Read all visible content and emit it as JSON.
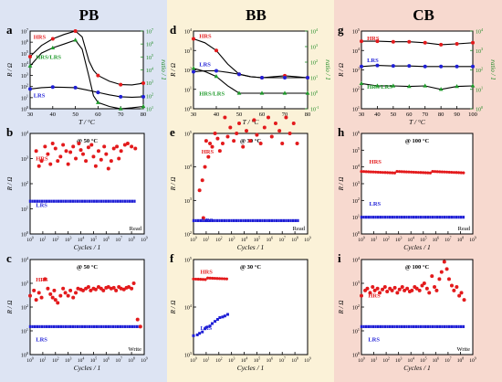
{
  "columns": [
    {
      "title": "PB",
      "bg": "#dde4f3"
    },
    {
      "title": "BB",
      "bg": "#fbf2d8"
    },
    {
      "title": "CB",
      "bg": "#f7d9cf"
    }
  ],
  "colors": {
    "hrs": "#e31a1c",
    "lrs": "#1f1fd6",
    "ratio": "#1e9a2a",
    "rt": "#000000",
    "green_axis": "#1e8a24"
  },
  "chart_data": [
    {
      "id": "a",
      "type": "line",
      "column": "PB",
      "xlabel": "T / °C",
      "ylabel": "R / Ω",
      "y2label": "ratio / 1",
      "xlim": [
        30,
        80
      ],
      "xticks": [
        30,
        40,
        50,
        60,
        70,
        80
      ],
      "ylog": true,
      "yexp": [
        0,
        1,
        2,
        3,
        4,
        5,
        6,
        7
      ],
      "y2log": true,
      "y2exp": [
        1,
        2,
        3,
        4,
        5,
        6,
        7
      ],
      "series": [
        {
          "name": "HRS",
          "axis": "left",
          "color": "hrs",
          "marker": "circle",
          "x": [
            30,
            40,
            50,
            60,
            70,
            80
          ],
          "y": [
            50000.0,
            2000000.0,
            10000000.0,
            1000.0,
            150,
            200
          ],
          "curve_x": [
            30,
            35,
            40,
            45,
            50,
            53,
            56,
            58,
            60,
            65,
            70,
            75,
            80
          ],
          "curve_y": [
            50000.0,
            500000.0,
            2000000.0,
            5000000.0,
            10000000.0,
            3000000.0,
            20000.0,
            3000.0,
            1000.0,
            300,
            150,
            140,
            200
          ]
        },
        {
          "name": "LRS",
          "axis": "left",
          "color": "lrs",
          "marker": "circle",
          "x": [
            30,
            40,
            50,
            60,
            70,
            80
          ],
          "y": [
            60,
            90,
            80,
            30,
            12,
            12
          ],
          "curve_x": [
            30,
            35,
            40,
            45,
            50,
            55,
            60,
            65,
            70,
            75,
            80
          ],
          "curve_y": [
            60,
            80,
            90,
            85,
            80,
            50,
            30,
            18,
            12,
            11,
            12
          ]
        },
        {
          "name": "HRS/LRS",
          "axis": "right",
          "color": "ratio",
          "marker": "triangle",
          "x": [
            30,
            40,
            50,
            60,
            70,
            80
          ],
          "y": [
            20000.0,
            500000.0,
            2000000.0,
            30,
            10,
            15
          ],
          "curve_x": [
            30,
            35,
            40,
            45,
            50,
            53,
            56,
            58,
            60,
            65,
            70,
            75,
            80
          ],
          "curve_y": [
            20000.0,
            200000.0,
            500000.0,
            1000000.0,
            2000000.0,
            400000.0,
            3000.0,
            100,
            30,
            15,
            10,
            12,
            15
          ]
        }
      ],
      "labels": [
        {
          "text": "HRS",
          "color": "hrs"
        },
        {
          "text": "HRS/LRS",
          "color": "ratio"
        },
        {
          "text": "LRS",
          "color": "lrs"
        }
      ]
    },
    {
      "id": "d",
      "type": "line",
      "column": "BB",
      "xlabel": "T / °C",
      "ylabel": "R / Ω",
      "y2label": "ratio / 1",
      "xlim": [
        30,
        80
      ],
      "xticks": [
        30,
        40,
        50,
        60,
        70,
        80
      ],
      "ylog": true,
      "yexp": [
        0,
        1,
        2,
        3,
        4
      ],
      "y2log": true,
      "y2exp": [
        -1,
        0,
        1,
        2,
        3,
        4
      ],
      "series": [
        {
          "name": "HRS",
          "axis": "left",
          "color": "hrs",
          "marker": "circle",
          "x": [
            30,
            40,
            50,
            60,
            70,
            80
          ],
          "y": [
            4000,
            1000,
            60,
            40,
            50,
            40
          ],
          "curve_x": [
            30,
            35,
            40,
            45,
            50,
            55,
            60,
            65,
            70,
            75,
            80
          ],
          "curve_y": [
            4000,
            2500,
            1000,
            200,
            60,
            45,
            40,
            45,
            50,
            45,
            40
          ]
        },
        {
          "name": "LRS",
          "axis": "left",
          "color": "lrs",
          "marker": "circle",
          "x": [
            30,
            40,
            50,
            60,
            70,
            80
          ],
          "y": [
            80,
            90,
            60,
            40,
            40,
            40
          ],
          "curve_x": [
            30,
            35,
            40,
            45,
            50,
            55,
            60,
            65,
            70,
            75,
            80
          ],
          "curve_y": [
            80,
            90,
            90,
            75,
            60,
            45,
            40,
            40,
            40,
            40,
            40
          ]
        },
        {
          "name": "HRS/LRS",
          "axis": "right",
          "color": "ratio",
          "marker": "triangle",
          "x": [
            30,
            40,
            50,
            60,
            70,
            80
          ],
          "y": [
            40,
            12,
            1,
            1,
            1,
            1
          ],
          "curve_x": [
            30,
            35,
            40,
            45,
            50,
            55,
            60,
            70,
            80
          ],
          "curve_y": [
            40,
            25,
            12,
            3,
            1,
            1,
            1,
            1,
            1
          ]
        }
      ],
      "labels": [
        {
          "text": "HRS",
          "color": "hrs"
        },
        {
          "text": "LRS",
          "color": "lrs"
        },
        {
          "text": "HRS/LRS",
          "color": "ratio"
        }
      ]
    },
    {
      "id": "g",
      "type": "line",
      "column": "CB",
      "xlabel": "T / °C",
      "ylabel": "R / Ω",
      "y2label": "ratio / 1",
      "xlim": [
        30,
        100
      ],
      "xticks": [
        30,
        40,
        50,
        60,
        70,
        80,
        90,
        100
      ],
      "ylog": true,
      "yexp": [
        1,
        2,
        3,
        4,
        5
      ],
      "y2log": true,
      "y2exp": [
        0,
        1,
        2,
        3,
        4
      ],
      "series": [
        {
          "name": "HRS",
          "axis": "left",
          "color": "hrs",
          "marker": "circle",
          "x": [
            30,
            40,
            50,
            60,
            70,
            80,
            90,
            100
          ],
          "y": [
            30000,
            30000,
            28000,
            28000,
            25000,
            20000,
            22000,
            25000
          ]
        },
        {
          "name": "LRS",
          "axis": "left",
          "color": "lrs",
          "marker": "circle",
          "x": [
            30,
            40,
            50,
            60,
            70,
            80,
            90,
            100
          ],
          "y": [
            1500,
            1700,
            1600,
            1600,
            1500,
            1500,
            1500,
            1500
          ]
        },
        {
          "name": "HRS/LRS",
          "axis": "right",
          "color": "ratio",
          "marker": "triangle",
          "x": [
            30,
            40,
            50,
            60,
            70,
            80,
            90,
            100
          ],
          "y": [
            20,
            15,
            15,
            14,
            15,
            10,
            14,
            15
          ]
        }
      ],
      "labels": [
        {
          "text": "HRS",
          "color": "hrs"
        },
        {
          "text": "LRS",
          "color": "lrs"
        },
        {
          "text": "HRS/LRS",
          "color": "ratio"
        }
      ]
    },
    {
      "id": "b",
      "type": "scatter",
      "column": "PB",
      "condition": "@ 50 °C",
      "corner": "Read",
      "xlabel": "Cycles / 1",
      "ylabel": "R / Ω",
      "xlog": true,
      "xexp": [
        0,
        1,
        2,
        3,
        4,
        5,
        6,
        7,
        8,
        9
      ],
      "ylog": true,
      "yexp": [
        0,
        1,
        2,
        3,
        4
      ],
      "hrs": {
        "x": [
          3,
          5,
          8,
          15,
          25,
          40,
          60,
          100,
          150,
          250,
          400,
          700,
          1000,
          1500,
          2500,
          4000,
          7000,
          10000,
          15000,
          25000,
          40000,
          70000,
          100000,
          150000,
          250000,
          400000,
          700000,
          1000000,
          1500000,
          2500000,
          4000000,
          7000000,
          10000000,
          15000000,
          30000000,
          50000000,
          100000000,
          200000000
        ],
        "y": [
          2000,
          500,
          800,
          3000,
          1500,
          600,
          4000,
          2500,
          800,
          1200,
          3500,
          2000,
          600,
          1800,
          3000,
          1000,
          4000,
          2200,
          1500,
          800,
          2800,
          3500,
          1200,
          500,
          2000,
          900,
          3000,
          1500,
          400,
          800,
          2500,
          3000,
          1000,
          2000,
          3500,
          4000,
          3000,
          2500
        ]
      },
      "lrs": {
        "x_from": 1,
        "x_to": 200000000,
        "y": 20
      },
      "labels": [
        {
          "text": "HRS",
          "color": "hrs"
        },
        {
          "text": "LRS",
          "color": "lrs"
        }
      ]
    },
    {
      "id": "e",
      "type": "scatter",
      "column": "BB",
      "condition": "@ 30 °C",
      "corner": "Read",
      "xlabel": "Cycles / 1",
      "ylabel": "R / Ω",
      "xlog": true,
      "xexp": [
        0,
        1,
        2,
        3,
        4,
        5,
        6,
        7,
        8,
        9
      ],
      "ylog": true,
      "yexp": [
        2,
        3,
        4,
        5
      ],
      "hrs": {
        "x": [
          3,
          5,
          6,
          8,
          10,
          15,
          20,
          30,
          50,
          80,
          120,
          200,
          300,
          500,
          800,
          1500,
          2500,
          4000,
          8000,
          15000,
          30000,
          60000,
          100000,
          200000,
          400000,
          800000,
          1500000,
          3000000,
          6000000,
          10000000,
          20000000,
          40000000,
          80000000,
          150000000
        ],
        "y": [
          2000,
          4000,
          300,
          10000,
          60000,
          20000,
          50000,
          40000,
          100000,
          70000,
          30000,
          50000,
          300000,
          80000,
          150000,
          60000,
          100000,
          200000,
          40000,
          120000,
          60000,
          250000,
          90000,
          50000,
          150000,
          300000,
          80000,
          200000,
          120000,
          50000,
          300000,
          100000,
          200000,
          50000
        ]
      },
      "lrs": {
        "x_from": 1,
        "x_to": 200000000,
        "y": 250
      },
      "labels": [
        {
          "text": "HRS",
          "color": "hrs"
        },
        {
          "text": "LRS",
          "color": "lrs"
        }
      ]
    },
    {
      "id": "h",
      "type": "scatter",
      "column": "CB",
      "condition": "@ 100 °C",
      "corner": "Read",
      "xlabel": "Cycles / 1",
      "ylabel": "R / Ω",
      "xlog": true,
      "xexp": [
        0,
        1,
        2,
        3,
        4,
        5,
        6,
        7,
        8,
        9
      ],
      "ylog": true,
      "yexp": [
        0,
        1,
        2,
        3,
        4,
        5,
        6
      ],
      "hrs": {
        "dense": true,
        "x_from": 1,
        "x_to": 200000000,
        "y": 5000
      },
      "lrs": {
        "x_from": 1,
        "x_to": 200000000,
        "y": 10
      },
      "labels": [
        {
          "text": "HRS",
          "color": "hrs"
        },
        {
          "text": "LRS",
          "color": "lrs"
        }
      ]
    },
    {
      "id": "c",
      "type": "scatter",
      "column": "PB",
      "condition": "@ 50 °C",
      "corner": "Write",
      "xlabel": "Cycles / 1",
      "ylabel": "R / Ω",
      "xlog": true,
      "xexp": [
        0,
        1,
        2,
        3,
        4,
        5,
        6,
        7,
        8,
        9
      ],
      "ylog": true,
      "yexp": [
        0,
        1,
        2,
        3,
        4
      ],
      "hrs": {
        "x": [
          1,
          2,
          3,
          5,
          8,
          15,
          25,
          40,
          60,
          80,
          100,
          150,
          250,
          400,
          600,
          1000,
          1500,
          2500,
          4000,
          6000,
          10000,
          15000,
          25000,
          40000,
          60000,
          100000,
          150000,
          250000,
          400000,
          600000,
          1000000,
          1500000,
          2500000,
          4000000,
          6000000,
          10000000,
          15000000,
          25000000,
          40000000,
          60000000,
          100000000,
          150000000,
          300000000,
          500000000
        ],
        "y": [
          300,
          500,
          200,
          400,
          250,
          1500,
          600,
          350,
          250,
          500,
          200,
          150,
          300,
          600,
          400,
          300,
          500,
          250,
          400,
          600,
          550,
          500,
          600,
          700,
          500,
          600,
          550,
          700,
          600,
          500,
          650,
          700,
          600,
          650,
          500,
          700,
          600,
          550,
          650,
          700,
          600,
          1000,
          30,
          15
        ]
      },
      "lrs": {
        "x_from": 1,
        "x_to": 500000000,
        "y": 15
      },
      "labels": [
        {
          "text": "HRS",
          "color": "hrs"
        },
        {
          "text": "LRS",
          "color": "lrs"
        }
      ]
    },
    {
      "id": "f",
      "type": "scatter",
      "column": "BB",
      "condition": "@ 30 °C",
      "corner": "",
      "xlabel": "Cycles / 1",
      "ylabel": "R / Ω",
      "xlog": true,
      "xexp": [
        0,
        1,
        2,
        3,
        4,
        5,
        6,
        7,
        8,
        9
      ],
      "ylog": true,
      "yexp": [
        3,
        4,
        5
      ],
      "hrs": {
        "dense": true,
        "x_from": 1,
        "x_to": 500,
        "y": 40000
      },
      "lrs": {
        "x": [
          1,
          2,
          3,
          5,
          8,
          12,
          20,
          30,
          50,
          80,
          120,
          200,
          300,
          500
        ],
        "y": [
          2500,
          2600,
          2800,
          3000,
          3500,
          3800,
          4000,
          4500,
          5000,
          5500,
          6000,
          6200,
          6500,
          7000
        ]
      },
      "labels": [
        {
          "text": "HRS",
          "color": "hrs"
        },
        {
          "text": "LRS",
          "color": "lrs"
        }
      ]
    },
    {
      "id": "i",
      "type": "scatter",
      "column": "CB",
      "condition": "@ 100 °C",
      "corner": "Write",
      "xlabel": "Cycles / 1",
      "ylabel": "R / Ω",
      "xlog": true,
      "xexp": [
        0,
        1,
        2,
        3,
        4,
        5,
        6,
        7,
        8,
        9
      ],
      "ylog": true,
      "yexp": [
        0,
        1,
        2,
        3,
        4
      ],
      "hrs": {
        "x": [
          1,
          2,
          3,
          5,
          8,
          12,
          20,
          30,
          50,
          80,
          120,
          200,
          300,
          500,
          800,
          1200,
          2000,
          3000,
          5000,
          8000,
          12000,
          20000,
          30000,
          50000,
          80000,
          120000,
          200000,
          300000,
          500000,
          800000,
          1200000,
          2000000,
          3000000,
          5000000,
          8000000,
          12000000,
          20000000,
          30000000,
          50000000,
          80000000,
          120000000,
          200000000
        ],
        "y": [
          300,
          500,
          600,
          400,
          700,
          500,
          600,
          400,
          550,
          700,
          450,
          600,
          500,
          650,
          400,
          550,
          700,
          500,
          600,
          450,
          500,
          700,
          600,
          500,
          800,
          1000,
          600,
          400,
          2000,
          700,
          500,
          1500,
          3000,
          8000,
          4000,
          1500,
          800,
          500,
          700,
          300,
          400,
          200
        ]
      },
      "lrs": {
        "x_from": 1,
        "x_to": 200000000,
        "y": 15
      },
      "labels": [
        {
          "text": "HRS",
          "color": "hrs"
        },
        {
          "text": "LRS",
          "color": "lrs"
        }
      ]
    }
  ]
}
